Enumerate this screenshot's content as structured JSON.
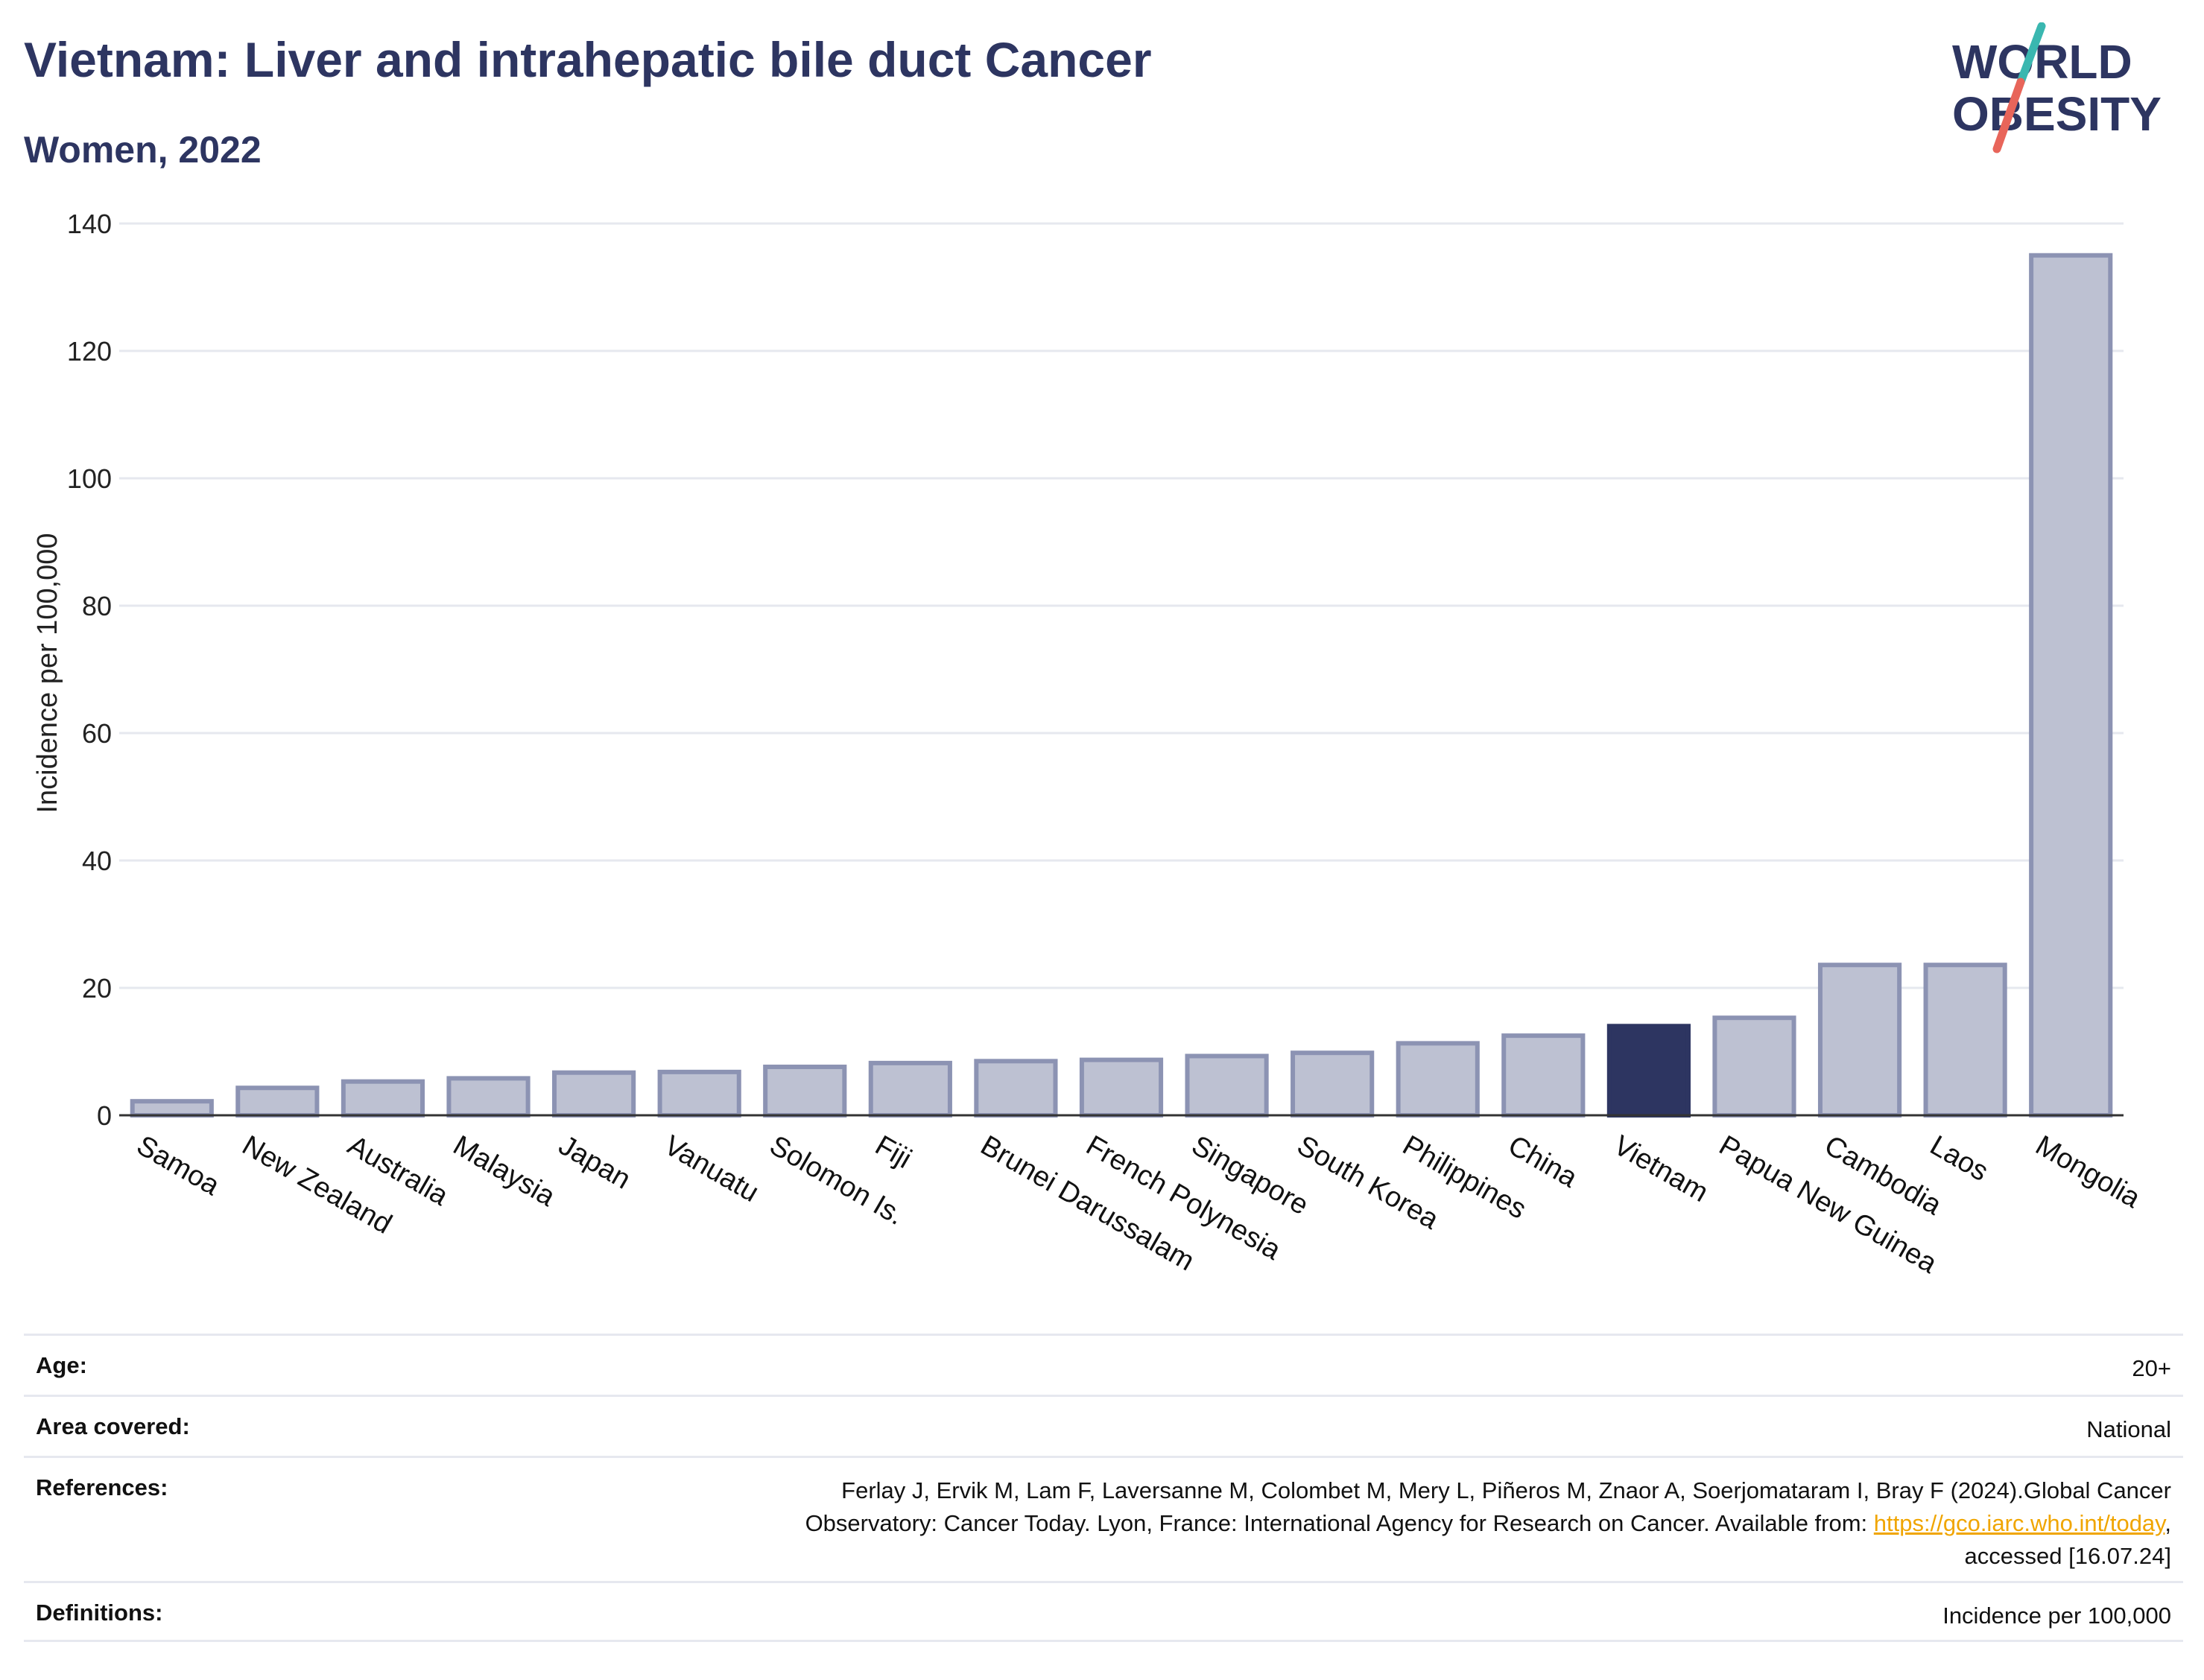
{
  "header": {
    "title": "Vietnam: Liver and intrahepatic bile duct Cancer",
    "subtitle": "Women, 2022"
  },
  "logo": {
    "line1": "WORLD",
    "line2": "OBESITY",
    "colors": {
      "text": "#2d3561",
      "slash_top": "#3ab7b0",
      "slash_bottom": "#e8655a"
    }
  },
  "chart_data": {
    "type": "bar",
    "categories": [
      "Samoa",
      "New Zealand",
      "Australia",
      "Malaysia",
      "Japan",
      "Vanuatu",
      "Solomon Is.",
      "Fiji",
      "Brunei Darussalam",
      "French Polynesia",
      "Singapore",
      "South Korea",
      "Philippines",
      "China",
      "Vietnam",
      "Papua New Guinea",
      "Cambodia",
      "Laos",
      "Mongolia"
    ],
    "values": [
      2.2,
      4.3,
      5.3,
      5.8,
      6.7,
      6.8,
      7.6,
      8.2,
      8.5,
      8.7,
      9.3,
      9.8,
      11.3,
      12.5,
      14.0,
      15.3,
      23.6,
      23.6,
      135.0
    ],
    "highlight": "Vietnam",
    "xlabel": "",
    "ylabel": "Incidence per 100,000",
    "ylim": [
      0,
      140
    ],
    "yticks": [
      0,
      20,
      40,
      60,
      80,
      100,
      120,
      140
    ],
    "grid": true,
    "colors": {
      "bar": "#bdc1d2",
      "bar_edge": "#8c93b3",
      "highlight": "#2d3561",
      "grid": "#e6e8ef",
      "axis": "#333333"
    }
  },
  "meta": {
    "age_label": "Age:",
    "age_value": "20+",
    "area_label": "Area covered:",
    "area_value": "National",
    "references_label": "References:",
    "references_line1": "Ferlay J, Ervik M, Lam F, Laversanne M, Colombet M, Mery L, Piñeros M, Znaor A, Soerjomataram I, Bray F (2024).Global Cancer",
    "references_line2_pre": "Observatory: Cancer Today. Lyon, France: International Agency for Research on Cancer. Available from: ",
    "references_link": "https://gco.iarc.who.int/today",
    "references_line2_post": ",",
    "references_line3": "accessed [16.07.24]",
    "definitions_label": "Definitions:",
    "definitions_value": "Incidence per 100,000"
  }
}
